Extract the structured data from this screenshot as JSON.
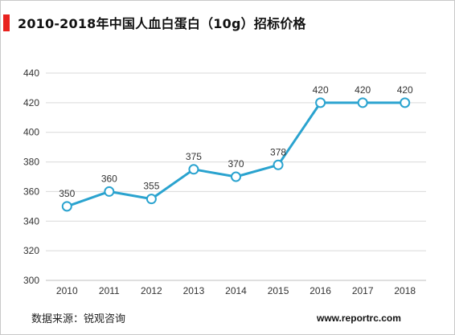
{
  "title": "2010-2018年中国人血白蛋白（10g）招标价格",
  "source": "数据来源：锐观咨询",
  "website": "www.reportrc.com",
  "colors": {
    "accent": "#e8231f",
    "line": "#2aa3cf",
    "grid": "#d9d9d9"
  },
  "chart_data": {
    "type": "line",
    "title": "2010-2018年中国人血白蛋白（10g）招标价格",
    "xlabel": "",
    "ylabel": "",
    "categories": [
      "2010",
      "2011",
      "2012",
      "2013",
      "2014",
      "2015",
      "2016",
      "2017",
      "2018"
    ],
    "series": [
      {
        "values": [
          350,
          360,
          355,
          375,
          370,
          378,
          420,
          420,
          420
        ]
      }
    ],
    "ylim": [
      300,
      440
    ],
    "yticks": [
      300,
      320,
      340,
      360,
      380,
      400,
      420,
      440
    ],
    "grid": true,
    "legend": "none",
    "data_labels": true
  }
}
